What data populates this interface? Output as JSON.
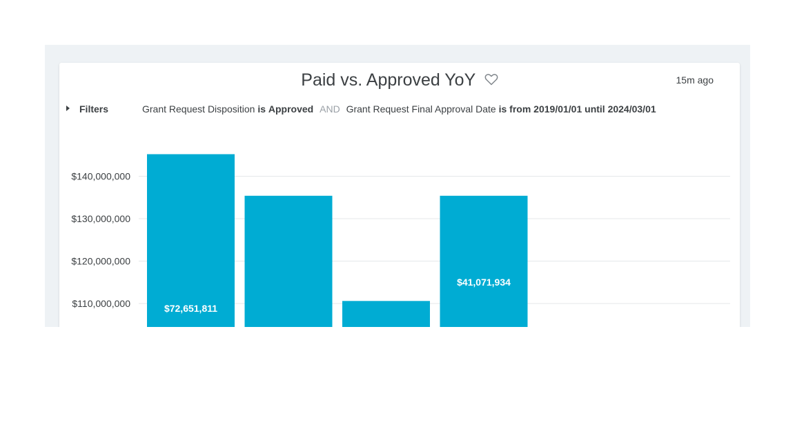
{
  "card": {
    "title": "Paid vs. Approved YoY",
    "timestamp": "15m ago"
  },
  "filters": {
    "label": "Filters",
    "clause1_field": "Grant Request Disposition",
    "clause1_op": "is",
    "clause1_value": "Approved",
    "joiner": "AND",
    "clause2_field": "Grant Request Final Approval Date",
    "clause2_op": "is from",
    "clause2_value1": "2019/01/01",
    "clause2_mid": "until",
    "clause2_value2": "2024/03/01"
  },
  "colors": {
    "bar": "#00acd3",
    "grid": "#e4e7ea",
    "tick_text": "#3c4043",
    "bar_label": "#ffffff"
  },
  "chart_data": {
    "type": "bar",
    "y_ticks": [
      110000000,
      120000000,
      130000000,
      140000000
    ],
    "tick_labels": [
      "$110,000,000",
      "$120,000,000",
      "$130,000,000",
      "$140,000,000"
    ],
    "ylim": [
      103700000,
      145000000
    ],
    "values": [
      145200000,
      135400000,
      110600000,
      135400000
    ],
    "data_labels": [
      "$72,651,811",
      "",
      "",
      "$41,071,934"
    ],
    "grid": true
  }
}
